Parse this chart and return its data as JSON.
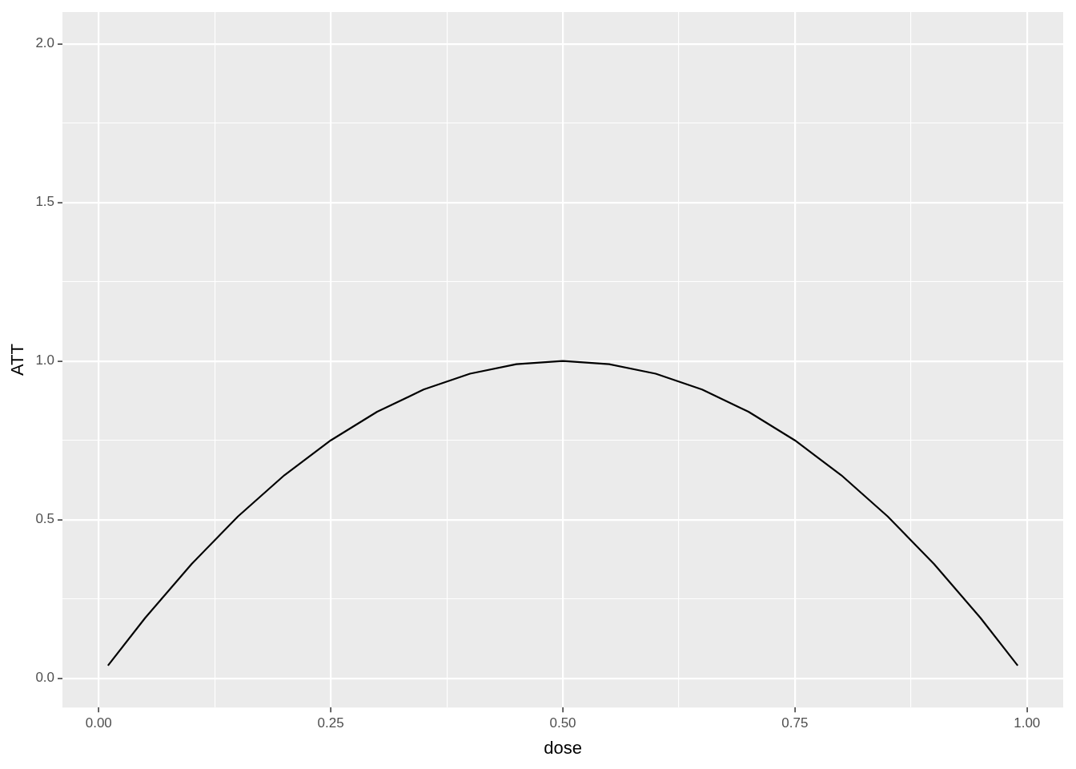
{
  "chart_data": {
    "type": "line",
    "xlabel": "dose",
    "ylabel": "ATT",
    "xlim": [
      -0.039,
      1.039
    ],
    "ylim": [
      -0.092,
      2.1
    ],
    "xticks": [
      {
        "value": 0,
        "label": "0.00"
      },
      {
        "value": 0.125,
        "label": null
      },
      {
        "value": 0.25,
        "label": "0.25"
      },
      {
        "value": 0.375,
        "label": null
      },
      {
        "value": 0.5,
        "label": "0.50"
      },
      {
        "value": 0.625,
        "label": null
      },
      {
        "value": 0.75,
        "label": "0.75"
      },
      {
        "value": 0.875,
        "label": null
      },
      {
        "value": 1,
        "label": "1.00"
      }
    ],
    "yticks": [
      {
        "value": 0,
        "label": "0.0"
      },
      {
        "value": 0.25,
        "label": null
      },
      {
        "value": 0.5,
        "label": "0.5"
      },
      {
        "value": 0.75,
        "label": null
      },
      {
        "value": 1,
        "label": "1.0"
      },
      {
        "value": 1.25,
        "label": null
      },
      {
        "value": 1.5,
        "label": "1.5"
      },
      {
        "value": 1.75,
        "label": null
      },
      {
        "value": 2,
        "label": "2.0"
      }
    ],
    "grid": true,
    "marker": "none",
    "series": [
      {
        "color": "#000000",
        "x": [
          0.01,
          0.05,
          0.1,
          0.15,
          0.2,
          0.25,
          0.3,
          0.35,
          0.4,
          0.45,
          0.5,
          0.55,
          0.6,
          0.65,
          0.7,
          0.75,
          0.8,
          0.85,
          0.9,
          0.95,
          0.99
        ],
        "values": [
          0.04,
          0.19,
          0.36,
          0.51,
          0.64,
          0.75,
          0.84,
          0.91,
          0.96,
          0.99,
          1.0,
          0.99,
          0.96,
          0.91,
          0.84,
          0.75,
          0.64,
          0.51,
          0.36,
          0.19,
          0.04
        ]
      }
    ]
  }
}
